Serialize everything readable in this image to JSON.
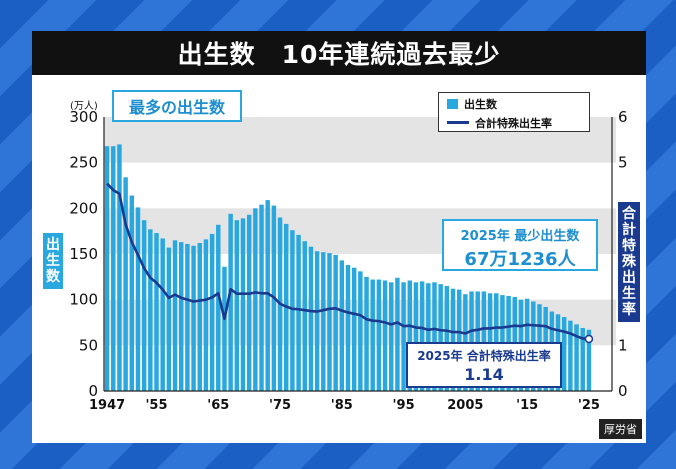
{
  "title": "出生数　10年連続過去最少",
  "source": "厚労省",
  "legend": {
    "bar_label": "出生数",
    "line_label": "合計特殊出生率"
  },
  "annotations": {
    "max_label": "最多の出生数",
    "births_line1": "2025年  最少出生数",
    "births_line2": "67万1236人",
    "tfr_line1": "2025年 合計特殊出生率",
    "tfr_line2": "1.14"
  },
  "colors": {
    "bar": "#29a8df",
    "line": "#1a3a8f",
    "band": "#e4e4e4",
    "title_bg": "#111111"
  },
  "chart_data": {
    "type": "bar",
    "ylabel": "出生数",
    "ylabel_unit": "(万人)",
    "y2label": "合計特殊出生率",
    "ylim": [
      0,
      300
    ],
    "y2lim": [
      0,
      6
    ],
    "yticks": [
      0,
      50,
      100,
      150,
      200,
      250,
      300
    ],
    "y2ticks": [
      0,
      1,
      2,
      3,
      4,
      5,
      6
    ],
    "xlim": [
      1947,
      2025
    ],
    "xtick_values": [
      1947,
      1955,
      1965,
      1975,
      1985,
      1995,
      2005,
      2015,
      2025
    ],
    "xtick_labels": [
      "1947",
      "'55",
      "'65",
      "'75",
      "'85",
      "'95",
      "2005",
      "'15",
      "'25"
    ],
    "x": [
      1947,
      1948,
      1949,
      1950,
      1951,
      1952,
      1953,
      1954,
      1955,
      1956,
      1957,
      1958,
      1959,
      1960,
      1961,
      1962,
      1963,
      1964,
      1965,
      1966,
      1967,
      1968,
      1969,
      1970,
      1971,
      1972,
      1973,
      1974,
      1975,
      1976,
      1977,
      1978,
      1979,
      1980,
      1981,
      1982,
      1983,
      1984,
      1985,
      1986,
      1987,
      1988,
      1989,
      1990,
      1991,
      1992,
      1993,
      1994,
      1995,
      1996,
      1997,
      1998,
      1999,
      2000,
      2001,
      2002,
      2003,
      2004,
      2005,
      2006,
      2007,
      2008,
      2009,
      2010,
      2011,
      2012,
      2013,
      2014,
      2015,
      2016,
      2017,
      2018,
      2019,
      2020,
      2021,
      2022,
      2023,
      2024,
      2025
    ],
    "series": [
      {
        "name": "出生数",
        "type": "bar",
        "values": [
          268,
          268,
          270,
          234,
          214,
          201,
          187,
          177,
          173,
          167,
          157,
          165,
          163,
          161,
          159,
          162,
          166,
          172,
          182,
          136,
          194,
          187,
          189,
          193,
          200,
          204,
          209,
          203,
          190,
          183,
          176,
          171,
          164,
          158,
          153,
          152,
          151,
          149,
          143,
          138,
          135,
          131,
          125,
          122,
          122,
          121,
          119,
          124,
          119,
          121,
          119,
          120,
          118,
          119,
          117,
          115,
          112,
          111,
          106,
          109,
          109,
          109,
          107,
          107,
          105,
          104,
          103,
          100,
          101,
          98,
          95,
          92,
          87,
          84,
          81,
          77,
          73,
          69,
          67.1
        ]
      },
      {
        "name": "合計特殊出生率",
        "type": "line",
        "axis": "right",
        "values": [
          4.54,
          4.4,
          4.32,
          3.65,
          3.26,
          2.98,
          2.69,
          2.48,
          2.37,
          2.22,
          2.04,
          2.11,
          2.04,
          2.0,
          1.96,
          1.98,
          2.0,
          2.05,
          2.14,
          1.58,
          2.23,
          2.13,
          2.13,
          2.13,
          2.16,
          2.14,
          2.14,
          2.05,
          1.91,
          1.85,
          1.8,
          1.79,
          1.77,
          1.75,
          1.74,
          1.77,
          1.8,
          1.81,
          1.76,
          1.72,
          1.69,
          1.66,
          1.57,
          1.54,
          1.53,
          1.5,
          1.46,
          1.5,
          1.42,
          1.43,
          1.39,
          1.38,
          1.34,
          1.36,
          1.33,
          1.32,
          1.29,
          1.29,
          1.26,
          1.32,
          1.34,
          1.37,
          1.37,
          1.39,
          1.39,
          1.41,
          1.43,
          1.42,
          1.45,
          1.44,
          1.43,
          1.42,
          1.36,
          1.33,
          1.3,
          1.26,
          1.2,
          1.15,
          1.14
        ]
      }
    ],
    "grid": "alternating horizontal bands"
  }
}
